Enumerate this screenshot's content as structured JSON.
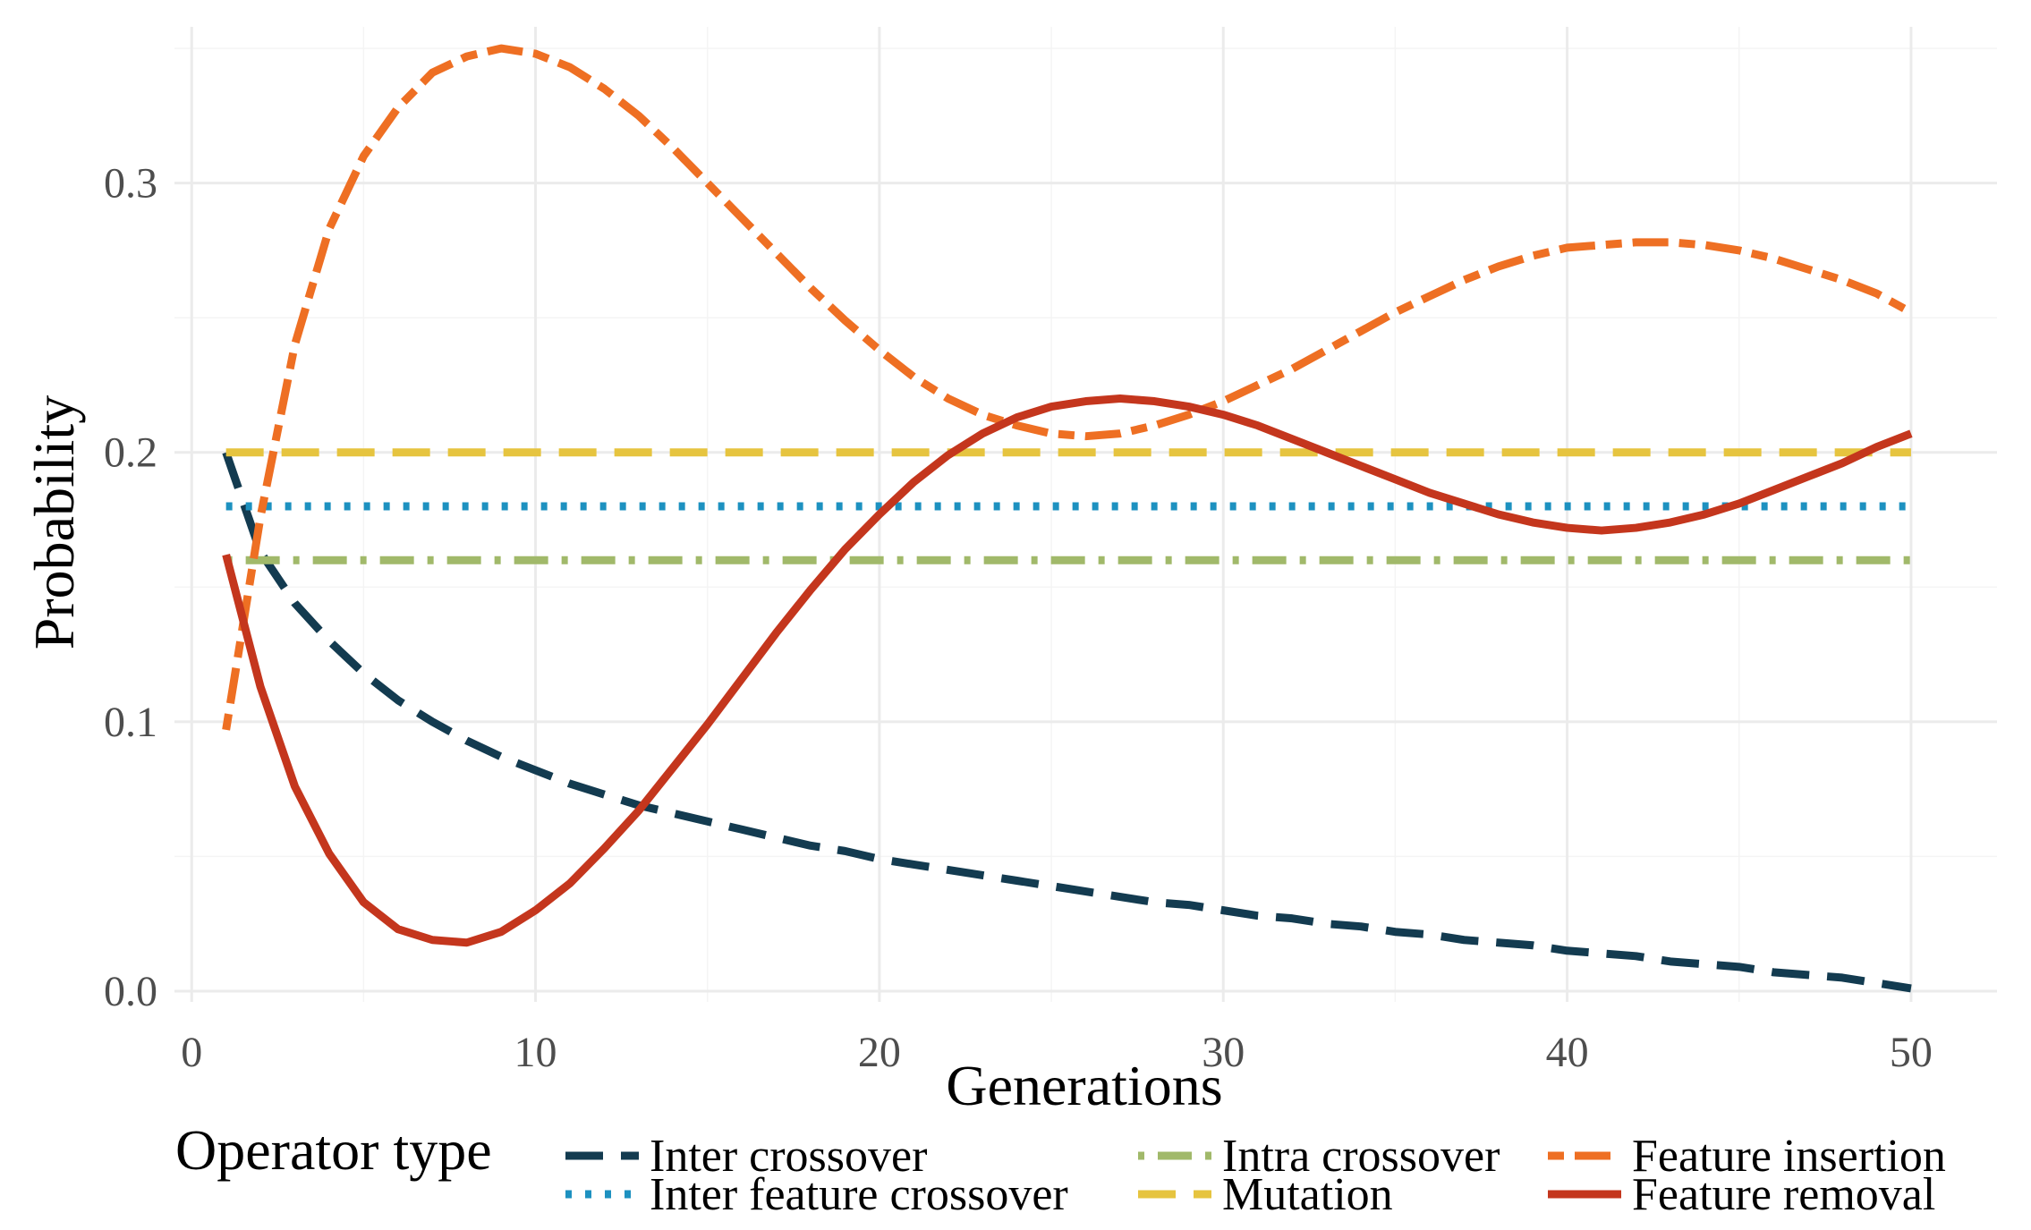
{
  "chart_data": {
    "type": "line",
    "title": "",
    "xlabel": "Generations",
    "ylabel": "Probability",
    "xlim": [
      -0.5,
      52.5
    ],
    "ylim": [
      -0.004,
      0.358
    ],
    "x_ticks": [
      0,
      10,
      20,
      30,
      40,
      50
    ],
    "x_tick_labels": [
      "0",
      "10",
      "20",
      "30",
      "40",
      "50"
    ],
    "y_ticks": [
      0.0,
      0.1,
      0.2,
      0.3
    ],
    "y_tick_labels": [
      "0.0",
      "0.1",
      "0.2",
      "0.3"
    ],
    "grid": true,
    "legend": {
      "title": "Operator type",
      "position": "bottom"
    },
    "x": [
      1,
      2,
      3,
      4,
      5,
      6,
      7,
      8,
      9,
      10,
      11,
      12,
      13,
      14,
      15,
      16,
      17,
      18,
      19,
      20,
      21,
      22,
      23,
      24,
      25,
      26,
      27,
      28,
      29,
      30,
      31,
      32,
      33,
      34,
      35,
      36,
      37,
      38,
      39,
      40,
      41,
      42,
      43,
      44,
      45,
      46,
      47,
      48,
      49,
      50
    ],
    "series": [
      {
        "name": "Inter crossover",
        "color": "#133b50",
        "dash": "longdash",
        "values": [
          0.2,
          0.163,
          0.144,
          0.13,
          0.118,
          0.108,
          0.1,
          0.093,
          0.087,
          0.082,
          0.077,
          0.073,
          0.069,
          0.066,
          0.063,
          0.06,
          0.057,
          0.054,
          0.052,
          0.049,
          0.047,
          0.045,
          0.043,
          0.041,
          0.039,
          0.037,
          0.035,
          0.033,
          0.032,
          0.03,
          0.028,
          0.027,
          0.025,
          0.024,
          0.022,
          0.021,
          0.019,
          0.018,
          0.017,
          0.015,
          0.014,
          0.013,
          0.011,
          0.01,
          0.009,
          0.007,
          0.006,
          0.005,
          0.003,
          0.001
        ]
      },
      {
        "name": "Inter feature crossover",
        "color": "#1d91c0",
        "dash": "dotted",
        "values": [
          0.18,
          0.18,
          0.18,
          0.18,
          0.18,
          0.18,
          0.18,
          0.18,
          0.18,
          0.18,
          0.18,
          0.18,
          0.18,
          0.18,
          0.18,
          0.18,
          0.18,
          0.18,
          0.18,
          0.18,
          0.18,
          0.18,
          0.18,
          0.18,
          0.18,
          0.18,
          0.18,
          0.18,
          0.18,
          0.18,
          0.18,
          0.18,
          0.18,
          0.18,
          0.18,
          0.18,
          0.18,
          0.18,
          0.18,
          0.18,
          0.18,
          0.18,
          0.18,
          0.18,
          0.18,
          0.18,
          0.18,
          0.18,
          0.18,
          0.18
        ]
      },
      {
        "name": "Intra crossover",
        "color": "#a1b96a",
        "dash": "dotdash",
        "values": [
          0.16,
          0.16,
          0.16,
          0.16,
          0.16,
          0.16,
          0.16,
          0.16,
          0.16,
          0.16,
          0.16,
          0.16,
          0.16,
          0.16,
          0.16,
          0.16,
          0.16,
          0.16,
          0.16,
          0.16,
          0.16,
          0.16,
          0.16,
          0.16,
          0.16,
          0.16,
          0.16,
          0.16,
          0.16,
          0.16,
          0.16,
          0.16,
          0.16,
          0.16,
          0.16,
          0.16,
          0.16,
          0.16,
          0.16,
          0.16,
          0.16,
          0.16,
          0.16,
          0.16,
          0.16,
          0.16,
          0.16,
          0.16,
          0.16,
          0.16
        ]
      },
      {
        "name": "Mutation",
        "color": "#e6c43f",
        "dash": "longdash",
        "values": [
          0.2,
          0.2,
          0.2,
          0.2,
          0.2,
          0.2,
          0.2,
          0.2,
          0.2,
          0.2,
          0.2,
          0.2,
          0.2,
          0.2,
          0.2,
          0.2,
          0.2,
          0.2,
          0.2,
          0.2,
          0.2,
          0.2,
          0.2,
          0.2,
          0.2,
          0.2,
          0.2,
          0.2,
          0.2,
          0.2,
          0.2,
          0.2,
          0.2,
          0.2,
          0.2,
          0.2,
          0.2,
          0.2,
          0.2,
          0.2,
          0.2,
          0.2,
          0.2,
          0.2,
          0.2,
          0.2,
          0.2,
          0.2,
          0.2,
          0.2
        ]
      },
      {
        "name": "Feature insertion",
        "color": "#ee6f23",
        "dash": "twodash",
        "values": [
          0.097,
          0.176,
          0.24,
          0.283,
          0.31,
          0.328,
          0.341,
          0.347,
          0.35,
          0.348,
          0.343,
          0.335,
          0.325,
          0.313,
          0.3,
          0.287,
          0.274,
          0.261,
          0.249,
          0.238,
          0.228,
          0.22,
          0.214,
          0.21,
          0.207,
          0.206,
          0.207,
          0.21,
          0.214,
          0.219,
          0.225,
          0.231,
          0.238,
          0.245,
          0.252,
          0.258,
          0.264,
          0.269,
          0.273,
          0.276,
          0.277,
          0.278,
          0.278,
          0.277,
          0.275,
          0.272,
          0.268,
          0.264,
          0.259,
          0.252
        ]
      },
      {
        "name": "Feature removal",
        "color": "#c4361d",
        "dash": "solid",
        "values": [
          0.162,
          0.113,
          0.076,
          0.051,
          0.033,
          0.023,
          0.019,
          0.018,
          0.022,
          0.03,
          0.04,
          0.053,
          0.067,
          0.083,
          0.099,
          0.116,
          0.133,
          0.149,
          0.164,
          0.177,
          0.189,
          0.199,
          0.207,
          0.213,
          0.217,
          0.219,
          0.22,
          0.219,
          0.217,
          0.214,
          0.21,
          0.205,
          0.2,
          0.195,
          0.19,
          0.185,
          0.181,
          0.177,
          0.174,
          0.172,
          0.171,
          0.172,
          0.174,
          0.177,
          0.181,
          0.186,
          0.191,
          0.196,
          0.202,
          0.207
        ]
      }
    ]
  }
}
